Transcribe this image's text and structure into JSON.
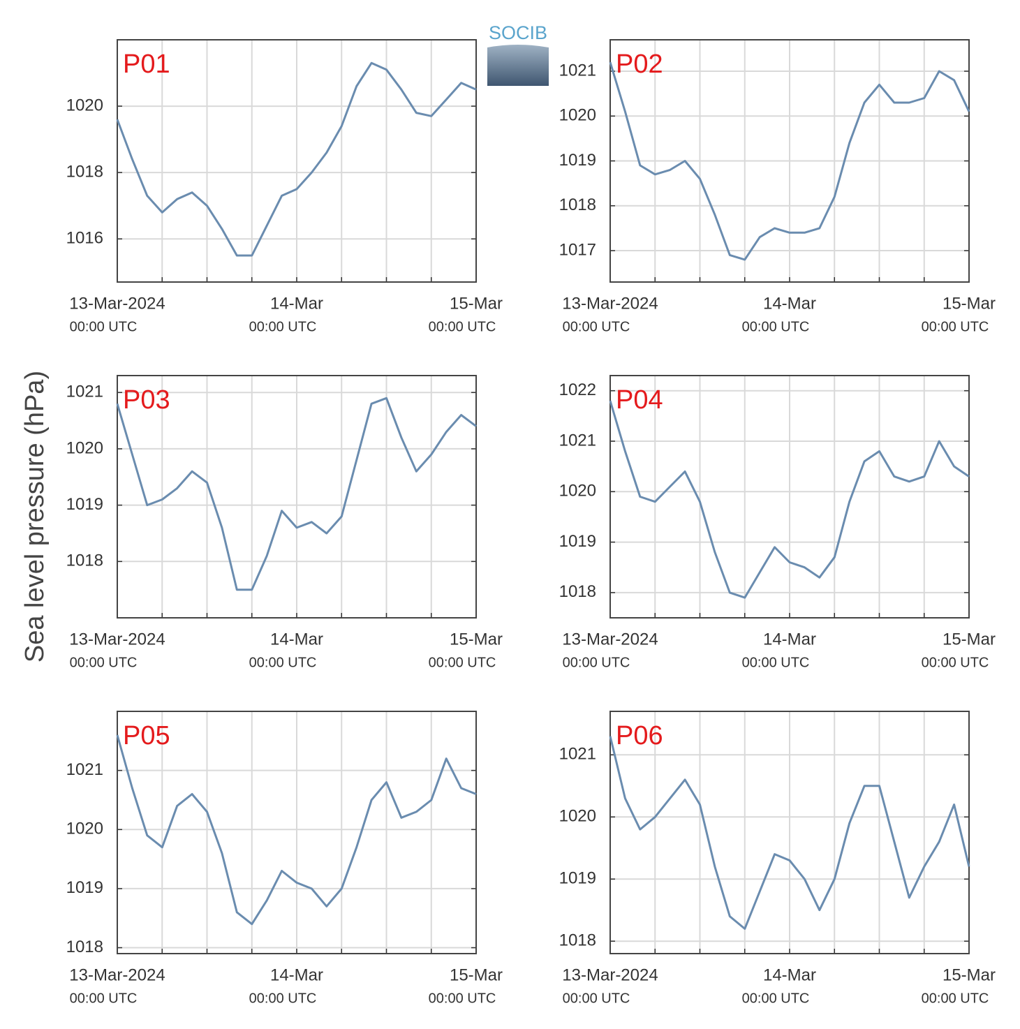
{
  "ylabel": "Sea level pressure (hPa)",
  "logo": "SOCIB",
  "chart_data": [
    {
      "type": "line",
      "title": "P01",
      "title_color": "#e41a1c",
      "color": "#6a8caf",
      "grid": true,
      "x": [
        "2024-03-13T00:00",
        "2024-03-13T02:00",
        "2024-03-13T04:00",
        "2024-03-13T06:00",
        "2024-03-13T08:00",
        "2024-03-13T10:00",
        "2024-03-13T12:00",
        "2024-03-13T14:00",
        "2024-03-13T16:00",
        "2024-03-13T18:00",
        "2024-03-13T20:00",
        "2024-03-13T22:00",
        "2024-03-14T00:00",
        "2024-03-14T02:00",
        "2024-03-14T04:00",
        "2024-03-14T06:00",
        "2024-03-14T08:00",
        "2024-03-14T10:00",
        "2024-03-14T12:00",
        "2024-03-14T14:00",
        "2024-03-14T16:00",
        "2024-03-14T18:00",
        "2024-03-14T20:00",
        "2024-03-14T22:00",
        "2024-03-15T00:00"
      ],
      "values": [
        1019.6,
        1018.4,
        1017.3,
        1016.8,
        1017.2,
        1017.4,
        1017.0,
        1016.3,
        1015.5,
        1015.5,
        1016.4,
        1017.3,
        1017.5,
        1018.0,
        1018.6,
        1019.4,
        1020.6,
        1021.3,
        1021.1,
        1020.5,
        1019.8,
        1019.7,
        1020.2,
        1020.7,
        1020.5
      ],
      "xlim": [
        "2024-03-13T00:00",
        "2024-03-15T00:00"
      ],
      "xticks": [
        {
          "value": "2024-03-13T00:00",
          "label": "13-Mar-2024",
          "sublabel": "00:00 UTC"
        },
        {
          "value": "2024-03-14T00:00",
          "label": "14-Mar",
          "sublabel": "00:00 UTC"
        },
        {
          "value": "2024-03-15T00:00",
          "label": "15-Mar",
          "sublabel": "00:00 UTC"
        }
      ],
      "xminor": [
        "2024-03-13T06:00",
        "2024-03-13T12:00",
        "2024-03-13T18:00",
        "2024-03-14T06:00",
        "2024-03-14T12:00",
        "2024-03-14T18:00"
      ],
      "ylim": [
        1014.7,
        1022.0
      ],
      "yticks": [
        1016,
        1018,
        1020
      ]
    },
    {
      "type": "line",
      "title": "P02",
      "title_color": "#e41a1c",
      "color": "#6a8caf",
      "grid": true,
      "x": [
        "2024-03-13T00:00",
        "2024-03-13T02:00",
        "2024-03-13T04:00",
        "2024-03-13T06:00",
        "2024-03-13T08:00",
        "2024-03-13T10:00",
        "2024-03-13T12:00",
        "2024-03-13T14:00",
        "2024-03-13T16:00",
        "2024-03-13T18:00",
        "2024-03-13T20:00",
        "2024-03-13T22:00",
        "2024-03-14T00:00",
        "2024-03-14T02:00",
        "2024-03-14T04:00",
        "2024-03-14T06:00",
        "2024-03-14T08:00",
        "2024-03-14T10:00",
        "2024-03-14T12:00",
        "2024-03-14T14:00",
        "2024-03-14T16:00",
        "2024-03-14T18:00",
        "2024-03-14T20:00",
        "2024-03-14T22:00",
        "2024-03-15T00:00"
      ],
      "values": [
        1021.2,
        1020.1,
        1018.9,
        1018.7,
        1018.8,
        1019.0,
        1018.6,
        1017.8,
        1016.9,
        1016.8,
        1017.3,
        1017.5,
        1017.4,
        1017.4,
        1017.5,
        1018.2,
        1019.4,
        1020.3,
        1020.7,
        1020.3,
        1020.3,
        1020.4,
        1021.0,
        1020.8,
        1020.1
      ],
      "xlim": [
        "2024-03-13T00:00",
        "2024-03-15T00:00"
      ],
      "xticks": [
        {
          "value": "2024-03-13T00:00",
          "label": "13-Mar-2024",
          "sublabel": "00:00 UTC"
        },
        {
          "value": "2024-03-14T00:00",
          "label": "14-Mar",
          "sublabel": "00:00 UTC"
        },
        {
          "value": "2024-03-15T00:00",
          "label": "15-Mar",
          "sublabel": "00:00 UTC"
        }
      ],
      "xminor": [
        "2024-03-13T06:00",
        "2024-03-13T12:00",
        "2024-03-13T18:00",
        "2024-03-14T06:00",
        "2024-03-14T12:00",
        "2024-03-14T18:00"
      ],
      "ylim": [
        1016.3,
        1021.7
      ],
      "yticks": [
        1017,
        1018,
        1019,
        1020,
        1021
      ]
    },
    {
      "type": "line",
      "title": "P03",
      "title_color": "#e41a1c",
      "color": "#6a8caf",
      "grid": true,
      "x": [
        "2024-03-13T00:00",
        "2024-03-13T02:00",
        "2024-03-13T04:00",
        "2024-03-13T06:00",
        "2024-03-13T08:00",
        "2024-03-13T10:00",
        "2024-03-13T12:00",
        "2024-03-13T14:00",
        "2024-03-13T16:00",
        "2024-03-13T18:00",
        "2024-03-13T20:00",
        "2024-03-13T22:00",
        "2024-03-14T00:00",
        "2024-03-14T02:00",
        "2024-03-14T04:00",
        "2024-03-14T06:00",
        "2024-03-14T08:00",
        "2024-03-14T10:00",
        "2024-03-14T12:00",
        "2024-03-14T14:00",
        "2024-03-14T16:00",
        "2024-03-14T18:00",
        "2024-03-14T20:00",
        "2024-03-14T22:00",
        "2024-03-15T00:00"
      ],
      "values": [
        1020.8,
        1019.9,
        1019.0,
        1019.1,
        1019.3,
        1019.6,
        1019.4,
        1018.6,
        1017.5,
        1017.5,
        1018.1,
        1018.9,
        1018.6,
        1018.7,
        1018.5,
        1018.8,
        1019.8,
        1020.8,
        1020.9,
        1020.2,
        1019.6,
        1019.9,
        1020.3,
        1020.6,
        1020.4
      ],
      "xlim": [
        "2024-03-13T00:00",
        "2024-03-15T00:00"
      ],
      "xticks": [
        {
          "value": "2024-03-13T00:00",
          "label": "13-Mar-2024",
          "sublabel": "00:00 UTC"
        },
        {
          "value": "2024-03-14T00:00",
          "label": "14-Mar",
          "sublabel": "00:00 UTC"
        },
        {
          "value": "2024-03-15T00:00",
          "label": "15-Mar",
          "sublabel": "00:00 UTC"
        }
      ],
      "xminor": [
        "2024-03-13T06:00",
        "2024-03-13T12:00",
        "2024-03-13T18:00",
        "2024-03-14T06:00",
        "2024-03-14T12:00",
        "2024-03-14T18:00"
      ],
      "ylim": [
        1017.0,
        1021.3
      ],
      "yticks": [
        1018,
        1019,
        1020,
        1021
      ]
    },
    {
      "type": "line",
      "title": "P04",
      "title_color": "#e41a1c",
      "color": "#6a8caf",
      "grid": true,
      "x": [
        "2024-03-13T00:00",
        "2024-03-13T02:00",
        "2024-03-13T04:00",
        "2024-03-13T06:00",
        "2024-03-13T08:00",
        "2024-03-13T10:00",
        "2024-03-13T12:00",
        "2024-03-13T14:00",
        "2024-03-13T16:00",
        "2024-03-13T18:00",
        "2024-03-13T20:00",
        "2024-03-13T22:00",
        "2024-03-14T00:00",
        "2024-03-14T02:00",
        "2024-03-14T04:00",
        "2024-03-14T06:00",
        "2024-03-14T08:00",
        "2024-03-14T10:00",
        "2024-03-14T12:00",
        "2024-03-14T14:00",
        "2024-03-14T16:00",
        "2024-03-14T18:00",
        "2024-03-14T20:00",
        "2024-03-14T22:00",
        "2024-03-15T00:00"
      ],
      "values": [
        1021.8,
        1020.8,
        1019.9,
        1019.8,
        1020.1,
        1020.4,
        1019.8,
        1018.8,
        1018.0,
        1017.9,
        1018.4,
        1018.9,
        1018.6,
        1018.5,
        1018.3,
        1018.7,
        1019.8,
        1020.6,
        1020.8,
        1020.3,
        1020.2,
        1020.3,
        1021.0,
        1020.5,
        1020.3
      ],
      "xlim": [
        "2024-03-13T00:00",
        "2024-03-15T00:00"
      ],
      "xticks": [
        {
          "value": "2024-03-13T00:00",
          "label": "13-Mar-2024",
          "sublabel": "00:00 UTC"
        },
        {
          "value": "2024-03-14T00:00",
          "label": "14-Mar",
          "sublabel": "00:00 UTC"
        },
        {
          "value": "2024-03-15T00:00",
          "label": "15-Mar",
          "sublabel": "00:00 UTC"
        }
      ],
      "xminor": [
        "2024-03-13T06:00",
        "2024-03-13T12:00",
        "2024-03-13T18:00",
        "2024-03-14T06:00",
        "2024-03-14T12:00",
        "2024-03-14T18:00"
      ],
      "ylim": [
        1017.5,
        1022.3
      ],
      "yticks": [
        1018,
        1019,
        1020,
        1021,
        1022
      ]
    },
    {
      "type": "line",
      "title": "P05",
      "title_color": "#e41a1c",
      "color": "#6a8caf",
      "grid": true,
      "x": [
        "2024-03-13T00:00",
        "2024-03-13T02:00",
        "2024-03-13T04:00",
        "2024-03-13T06:00",
        "2024-03-13T08:00",
        "2024-03-13T10:00",
        "2024-03-13T12:00",
        "2024-03-13T14:00",
        "2024-03-13T16:00",
        "2024-03-13T18:00",
        "2024-03-13T20:00",
        "2024-03-13T22:00",
        "2024-03-14T00:00",
        "2024-03-14T02:00",
        "2024-03-14T04:00",
        "2024-03-14T06:00",
        "2024-03-14T08:00",
        "2024-03-14T10:00",
        "2024-03-14T12:00",
        "2024-03-14T14:00",
        "2024-03-14T16:00",
        "2024-03-14T18:00",
        "2024-03-14T20:00",
        "2024-03-14T22:00",
        "2024-03-15T00:00"
      ],
      "values": [
        1021.6,
        1020.7,
        1019.9,
        1019.7,
        1020.4,
        1020.6,
        1020.3,
        1019.6,
        1018.6,
        1018.4,
        1018.8,
        1019.3,
        1019.1,
        1019.0,
        1018.7,
        1019.0,
        1019.7,
        1020.5,
        1020.8,
        1020.2,
        1020.3,
        1020.5,
        1021.2,
        1020.7,
        1020.6
      ],
      "xlim": [
        "2024-03-13T00:00",
        "2024-03-15T00:00"
      ],
      "xticks": [
        {
          "value": "2024-03-13T00:00",
          "label": "13-Mar-2024",
          "sublabel": "00:00 UTC"
        },
        {
          "value": "2024-03-14T00:00",
          "label": "14-Mar",
          "sublabel": "00:00 UTC"
        },
        {
          "value": "2024-03-15T00:00",
          "label": "15-Mar",
          "sublabel": "00:00 UTC"
        }
      ],
      "xminor": [
        "2024-03-13T06:00",
        "2024-03-13T12:00",
        "2024-03-13T18:00",
        "2024-03-14T06:00",
        "2024-03-14T12:00",
        "2024-03-14T18:00"
      ],
      "ylim": [
        1017.9,
        1022.0
      ],
      "yticks": [
        1018,
        1019,
        1020,
        1021
      ]
    },
    {
      "type": "line",
      "title": "P06",
      "title_color": "#e41a1c",
      "color": "#6a8caf",
      "grid": true,
      "x": [
        "2024-03-13T00:00",
        "2024-03-13T02:00",
        "2024-03-13T04:00",
        "2024-03-13T06:00",
        "2024-03-13T08:00",
        "2024-03-13T10:00",
        "2024-03-13T12:00",
        "2024-03-13T14:00",
        "2024-03-13T16:00",
        "2024-03-13T18:00",
        "2024-03-13T20:00",
        "2024-03-13T22:00",
        "2024-03-14T00:00",
        "2024-03-14T02:00",
        "2024-03-14T04:00",
        "2024-03-14T06:00",
        "2024-03-14T08:00",
        "2024-03-14T10:00",
        "2024-03-14T12:00",
        "2024-03-14T14:00",
        "2024-03-14T16:00",
        "2024-03-14T18:00",
        "2024-03-14T20:00",
        "2024-03-14T22:00",
        "2024-03-15T00:00"
      ],
      "values": [
        1021.3,
        1020.3,
        1019.8,
        1020.0,
        1020.3,
        1020.6,
        1020.2,
        1019.2,
        1018.4,
        1018.2,
        1018.8,
        1019.4,
        1019.3,
        1019.0,
        1018.5,
        1019.0,
        1019.9,
        1020.5,
        1020.5,
        1019.6,
        1018.7,
        1019.2,
        1019.6,
        1020.2,
        1019.2
      ],
      "xlim": [
        "2024-03-13T00:00",
        "2024-03-15T00:00"
      ],
      "xticks": [
        {
          "value": "2024-03-13T00:00",
          "label": "13-Mar-2024",
          "sublabel": "00:00 UTC"
        },
        {
          "value": "2024-03-14T00:00",
          "label": "14-Mar",
          "sublabel": "00:00 UTC"
        },
        {
          "value": "2024-03-15T00:00",
          "label": "15-Mar",
          "sublabel": "00:00 UTC"
        }
      ],
      "xminor": [
        "2024-03-13T06:00",
        "2024-03-13T12:00",
        "2024-03-13T18:00",
        "2024-03-14T06:00",
        "2024-03-14T12:00",
        "2024-03-14T18:00"
      ],
      "ylim": [
        1017.8,
        1021.7
      ],
      "yticks": [
        1018,
        1019,
        1020,
        1021
      ]
    }
  ]
}
